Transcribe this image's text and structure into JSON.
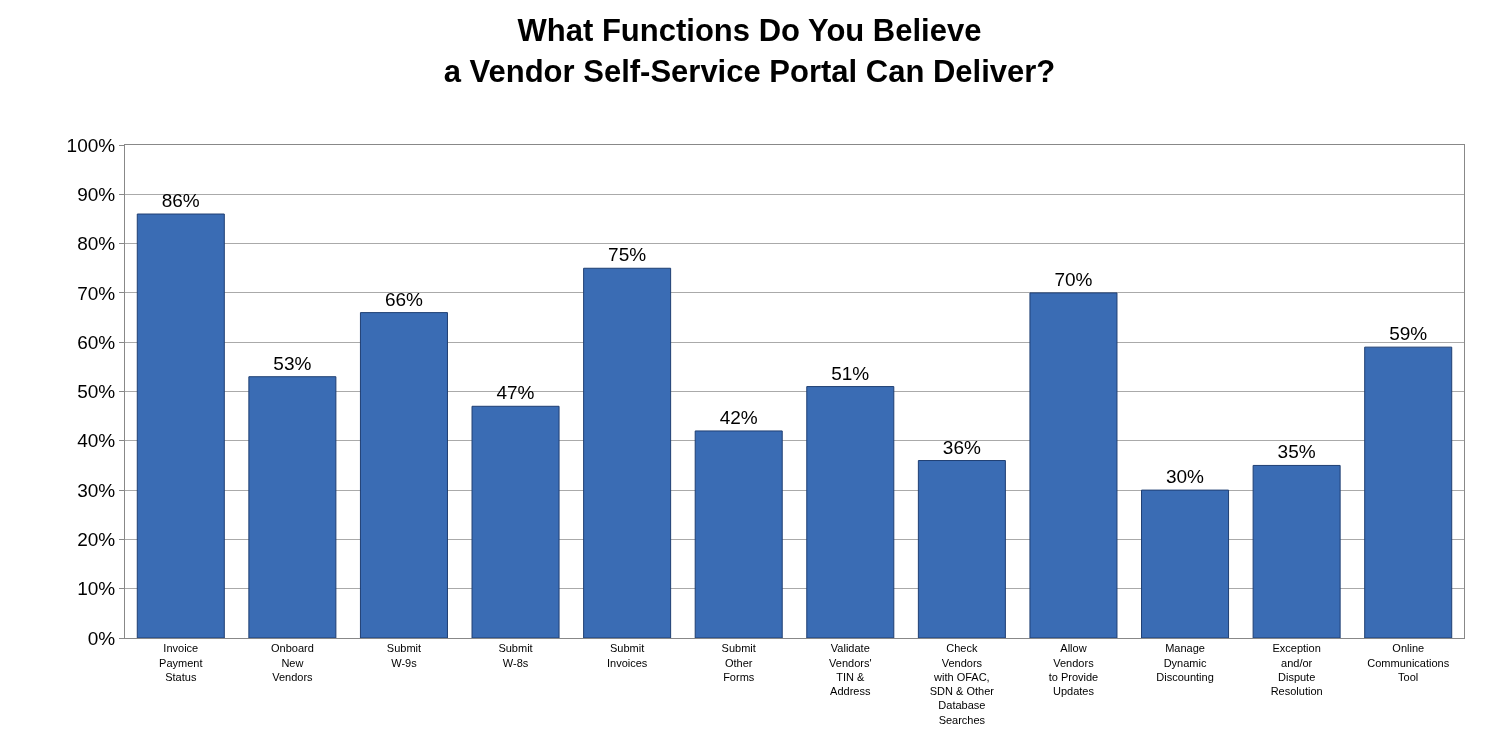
{
  "chart_data": {
    "type": "bar",
    "title": "What Functions Do You Believe\na Vendor Self-Service Portal Can Deliver?",
    "categories": [
      "Invoice\nPayment\nStatus",
      "Onboard\nNew\nVendors",
      "Submit\nW-9s",
      "Submit\nW-8s",
      "Submit\nInvoices",
      "Submit\nOther\nForms",
      "Validate\nVendors'\nTIN &\nAddress",
      "Check\nVendors\nwith OFAC,\nSDN & Other\nDatabase\nSearches",
      "Allow\nVendors\nto Provide\nUpdates",
      "Manage\nDynamic\nDiscounting",
      "Exception\nand/or\nDispute\nResolution",
      "Online\nCommunications\nTool"
    ],
    "values": [
      86,
      53,
      66,
      47,
      75,
      42,
      51,
      36,
      70,
      30,
      35,
      59
    ],
    "value_labels": [
      "86%",
      "53%",
      "66%",
      "47%",
      "75%",
      "42%",
      "51%",
      "36%",
      "70%",
      "30%",
      "35%",
      "59%"
    ],
    "color": "#3a6cb4",
    "ylim": [
      0,
      100
    ],
    "yticks": [
      {
        "value": 0,
        "label": "0%"
      },
      {
        "value": 10,
        "label": "10%"
      },
      {
        "value": 20,
        "label": "20%"
      },
      {
        "value": 30,
        "label": "30%"
      },
      {
        "value": 40,
        "label": "40%"
      },
      {
        "value": 50,
        "label": "50%"
      },
      {
        "value": 60,
        "label": "60%"
      },
      {
        "value": 70,
        "label": "70%"
      },
      {
        "value": 80,
        "label": "80%"
      },
      {
        "value": 90,
        "label": "90%"
      },
      {
        "value": 100,
        "label": "100%"
      }
    ],
    "grid": "y",
    "legend": false
  }
}
